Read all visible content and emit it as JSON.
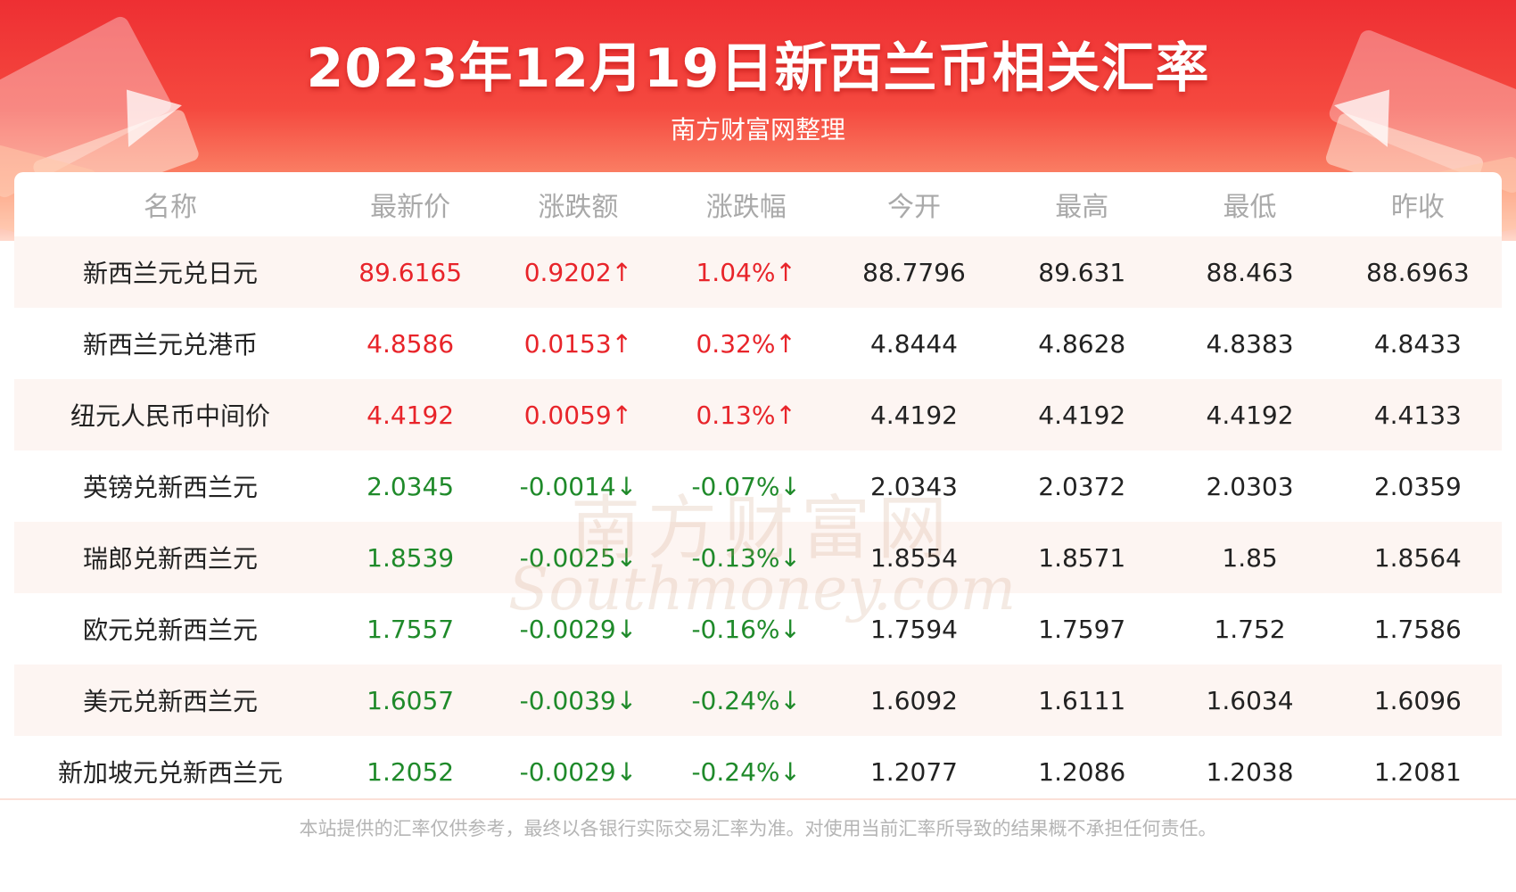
{
  "header": {
    "title": "2023年12月19日新西兰币相关汇率",
    "subtitle": "南方财富网整理"
  },
  "table": {
    "columns": [
      "名称",
      "最新价",
      "涨跌额",
      "涨跌幅",
      "今开",
      "最高",
      "最低",
      "昨收"
    ],
    "rows": [
      {
        "name": "新西兰元兑日元",
        "latest": "89.6165",
        "change": "0.9202↑",
        "change_pct": "1.04%↑",
        "open": "88.7796",
        "high": "89.631",
        "low": "88.463",
        "prev_close": "88.6963",
        "trend": "up"
      },
      {
        "name": "新西兰元兑港币",
        "latest": "4.8586",
        "change": "0.0153↑",
        "change_pct": "0.32%↑",
        "open": "4.8444",
        "high": "4.8628",
        "low": "4.8383",
        "prev_close": "4.8433",
        "trend": "up"
      },
      {
        "name": "纽元人民币中间价",
        "latest": "4.4192",
        "change": "0.0059↑",
        "change_pct": "0.13%↑",
        "open": "4.4192",
        "high": "4.4192",
        "low": "4.4192",
        "prev_close": "4.4133",
        "trend": "up"
      },
      {
        "name": "英镑兑新西兰元",
        "latest": "2.0345",
        "change": "-0.0014↓",
        "change_pct": "-0.07%↓",
        "open": "2.0343",
        "high": "2.0372",
        "low": "2.0303",
        "prev_close": "2.0359",
        "trend": "down"
      },
      {
        "name": "瑞郎兑新西兰元",
        "latest": "1.8539",
        "change": "-0.0025↓",
        "change_pct": "-0.13%↓",
        "open": "1.8554",
        "high": "1.8571",
        "low": "1.85",
        "prev_close": "1.8564",
        "trend": "down"
      },
      {
        "name": "欧元兑新西兰元",
        "latest": "1.7557",
        "change": "-0.0029↓",
        "change_pct": "-0.16%↓",
        "open": "1.7594",
        "high": "1.7597",
        "low": "1.752",
        "prev_close": "1.7586",
        "trend": "down"
      },
      {
        "name": "美元兑新西兰元",
        "latest": "1.6057",
        "change": "-0.0039↓",
        "change_pct": "-0.24%↓",
        "open": "1.6092",
        "high": "1.6111",
        "low": "1.6034",
        "prev_close": "1.6096",
        "trend": "down"
      },
      {
        "name": "新加坡元兑新西兰元",
        "latest": "1.2052",
        "change": "-0.0029↓",
        "change_pct": "-0.24%↓",
        "open": "1.2077",
        "high": "1.2086",
        "low": "1.2038",
        "prev_close": "1.2081",
        "trend": "down"
      }
    ]
  },
  "watermark": {
    "cn": "南方财富网",
    "en": "Southmoney.com"
  },
  "footer": {
    "disclaimer": "本站提供的汇率仅供参考，最终以各银行实际交易汇率为准。对使用当前汇率所导致的结果概不承担任何责任。"
  },
  "colors": {
    "up": "#e8242a",
    "down": "#1f8a2a",
    "banner": "#ee2f33"
  }
}
